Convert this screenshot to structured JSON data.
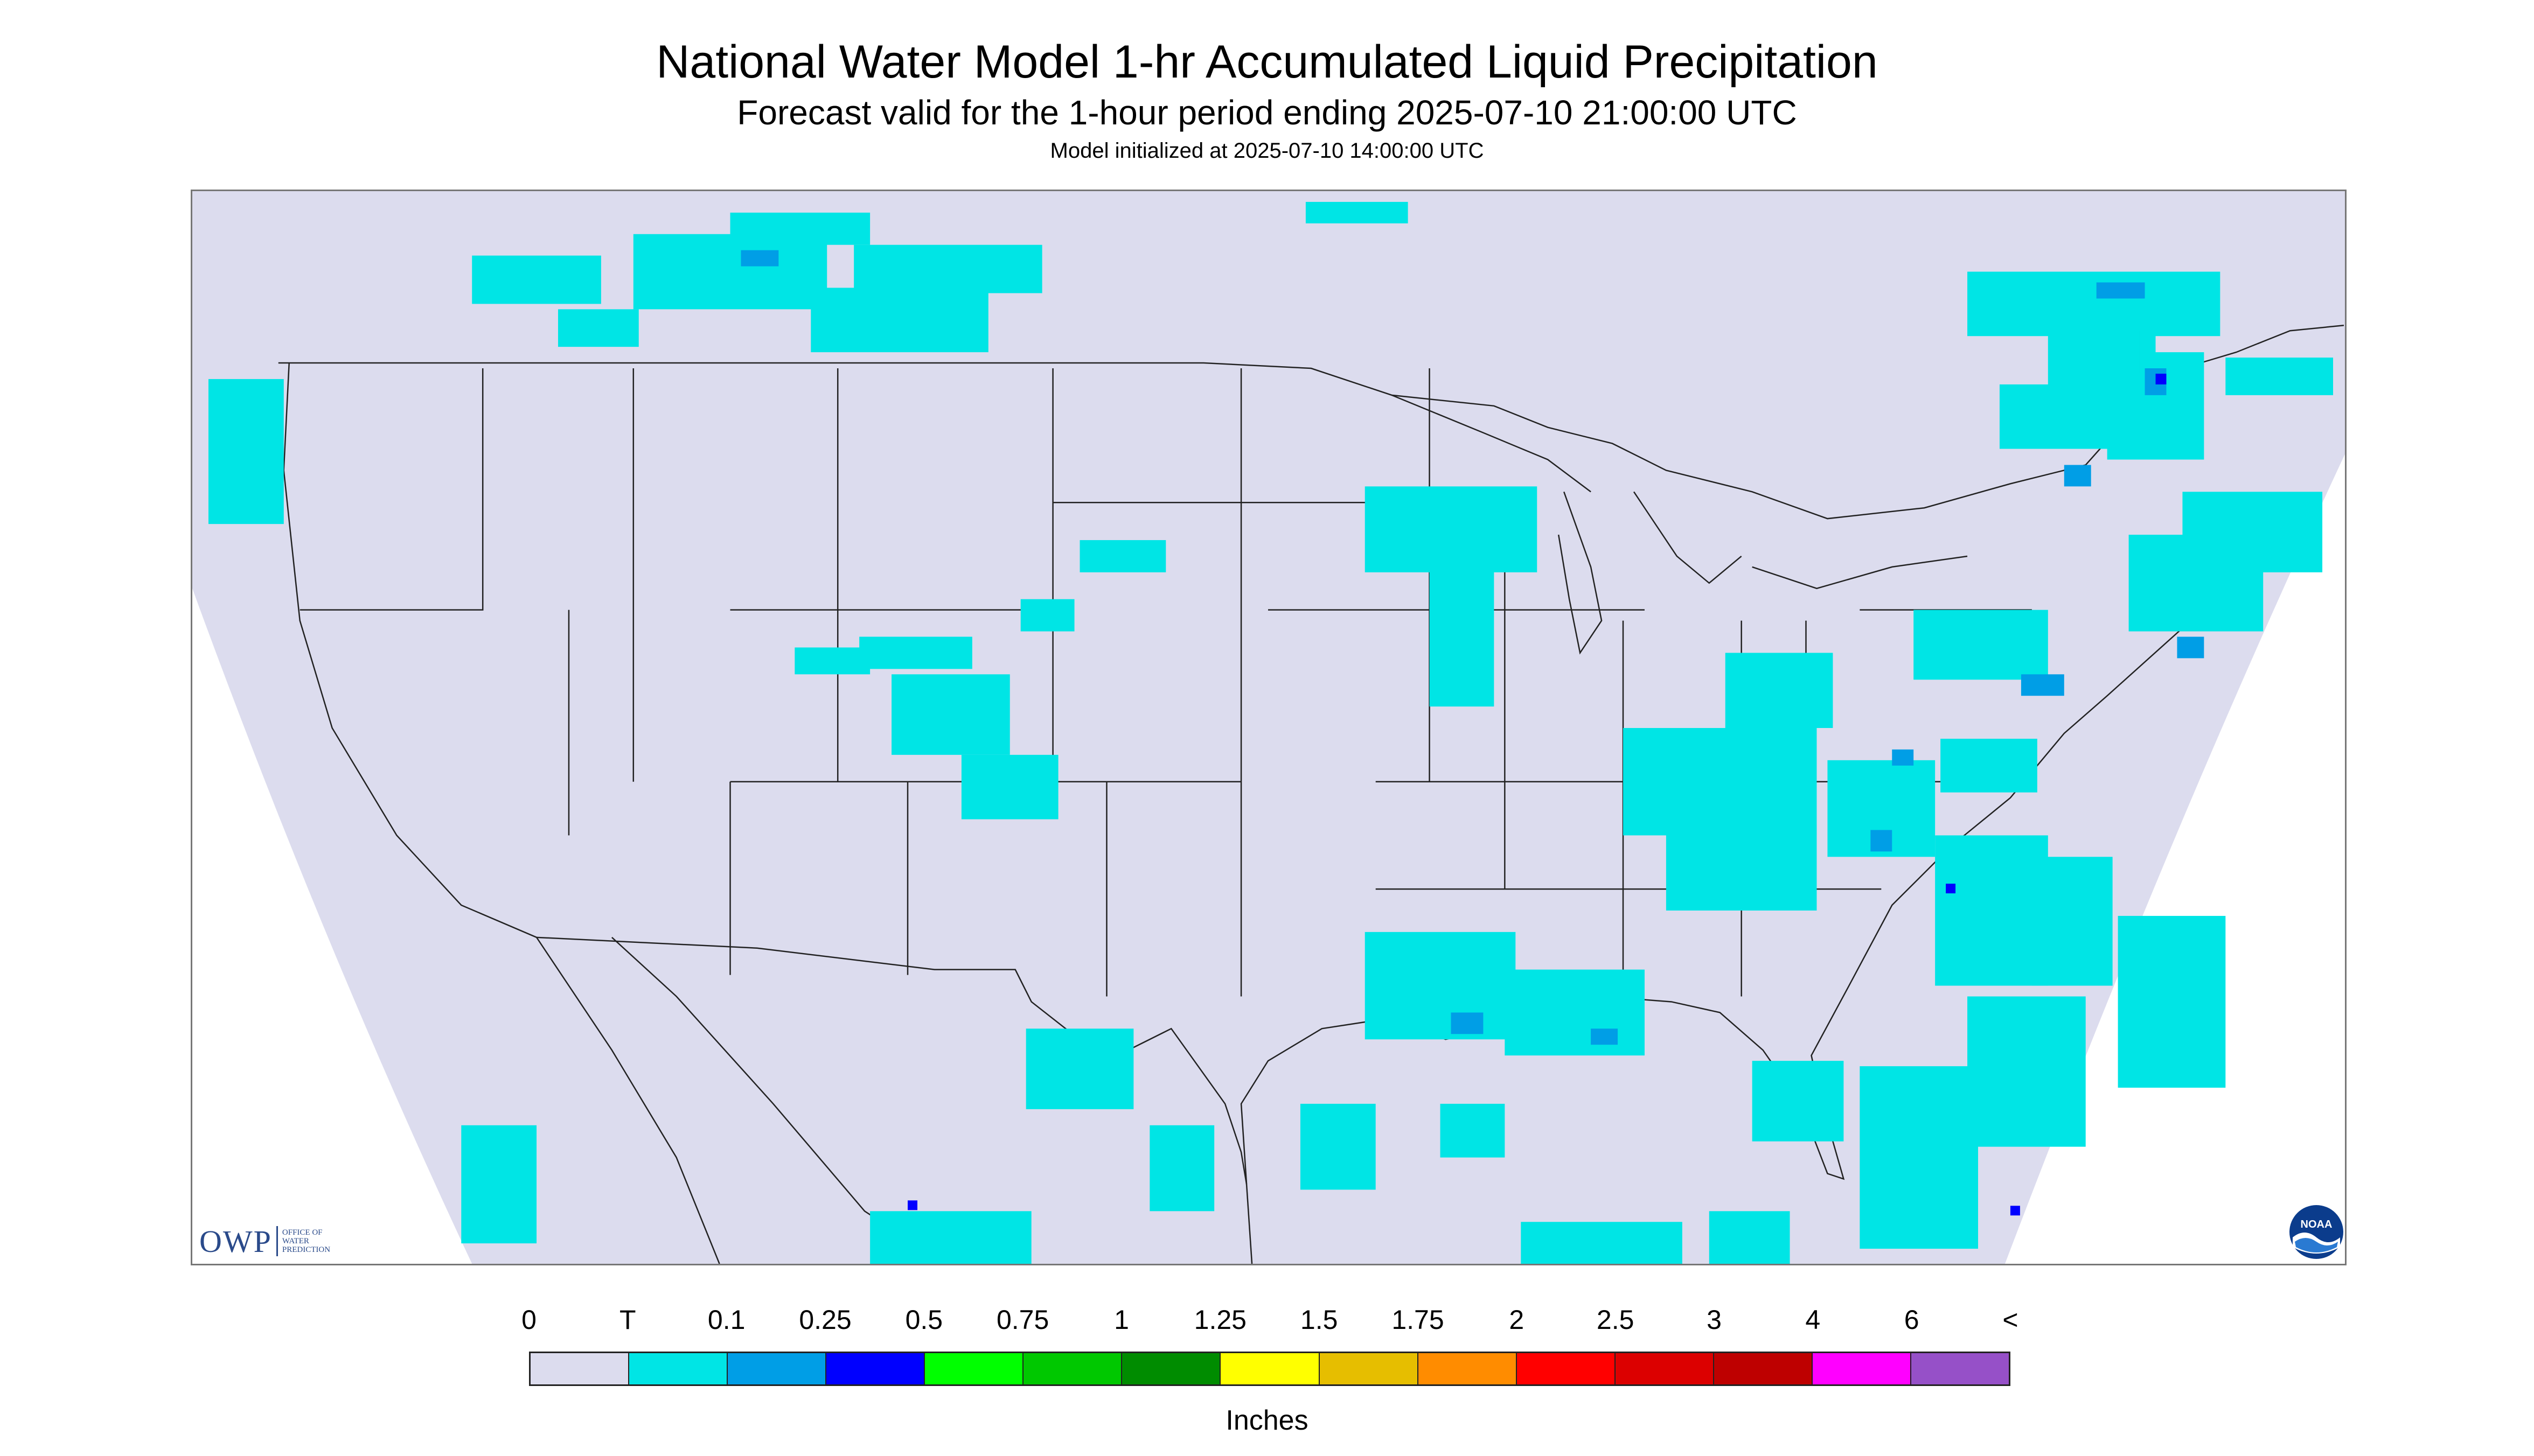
{
  "header": {
    "title": "National Water Model 1-hr Accumulated Liquid Precipitation",
    "subtitle": "Forecast valid for the 1-hour period ending 2025-07-10 21:00:00 UTC",
    "init_line": "Model initialized at 2025-07-10 14:00:00 UTC"
  },
  "logos": {
    "owp_mark": "OWP",
    "owp_text_1": "OFFICE OF",
    "owp_text_2": "WATER",
    "owp_text_3": "PREDICTION",
    "noaa": "NOAA"
  },
  "legend": {
    "tick_labels": [
      "0",
      "T",
      "0.1",
      "0.25",
      "0.5",
      "0.75",
      "1",
      "1.25",
      "1.5",
      "1.75",
      "2",
      "2.5",
      "3",
      "4",
      "6",
      "<"
    ],
    "colors": [
      "#dcdcee",
      "#00e5e5",
      "#009ee6",
      "#0000ff",
      "#00ff00",
      "#00c800",
      "#008c00",
      "#ffff00",
      "#e6be00",
      "#ff8c00",
      "#ff0000",
      "#dc0000",
      "#be0000",
      "#ff00ff",
      "#9650c8"
    ],
    "units": "Inches"
  },
  "map": {
    "domain_fill": "#dcdcee",
    "precip_light": "#00e5e5",
    "precip_med": "#009ee6",
    "precip_heavy": "#0000ff",
    "border_color": "#222222"
  }
}
